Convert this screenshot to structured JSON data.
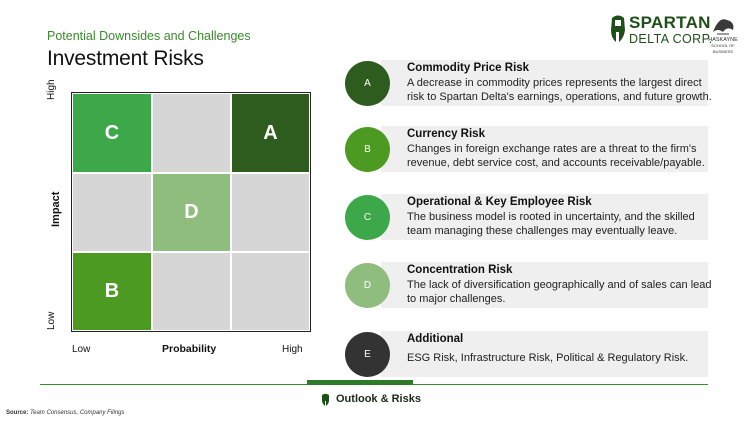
{
  "header": {
    "subtitle": "Potential Downsides and Challenges",
    "title": "Investment Risks"
  },
  "logo": {
    "word1": "SPARTAN",
    "word2": "DELTA CORP.",
    "partner_line1": "HASKAYNE",
    "partner_line2": "SCHOOL OF BUSINESS",
    "brand_color": "#1f4f18"
  },
  "matrix": {
    "y_axis_label": "Impact",
    "y_high": "High",
    "y_low": "Low",
    "x_axis_label": "Probability",
    "x_low": "Low",
    "x_high": "High",
    "cells": [
      "C",
      "",
      "A",
      "",
      "D",
      "",
      "B",
      "",
      ""
    ]
  },
  "risks": [
    {
      "letter": "A",
      "title": "Commodity Price Risk",
      "description": "A decrease in commodity prices represents the largest direct risk to Spartan Delta's earnings, operations, and future growth.",
      "color": "#2e5c1e"
    },
    {
      "letter": "B",
      "title": "Currency Risk",
      "description": "Changes in foreign exchange rates are a threat to the firm's revenue, debt service cost, and accounts receivable/payable.",
      "color": "#4c9a22"
    },
    {
      "letter": "C",
      "title": "Operational & Key Employee Risk",
      "description": "The business model is rooted in uncertainty, and the skilled team managing these challenges may eventually leave.",
      "color": "#3da84a"
    },
    {
      "letter": "D",
      "title": "Concentration Risk",
      "description": "The lack of diversification geographically and of sales can lead to major challenges.",
      "color": "#8fbd7e"
    },
    {
      "letter": "E",
      "title": "Additional",
      "description": "ESG Risk, Infrastructure Risk, Political & Regulatory Risk.",
      "color": "#333333"
    }
  ],
  "footer": {
    "section": "Outlook & Risks",
    "source_label": "Source:",
    "source_text": "Team Consensus, Company Filings"
  }
}
